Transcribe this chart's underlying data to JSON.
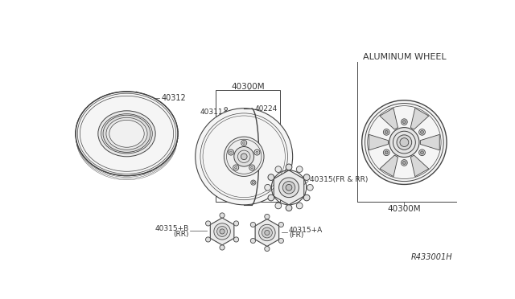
{
  "bg_color": "#ffffff",
  "line_color": "#444444",
  "text_color": "#333333",
  "ref_code": "R433001H",
  "labels": {
    "tire": "40312",
    "wheel_top": "40300M",
    "valve": "40311",
    "valve_ext": "40224",
    "hub_cap_main": "40315(FR & RR)",
    "hub_cap_b": "40315+B\n(RR)",
    "hub_cap_a": "40315+A\n(FR)",
    "aluminum_wheel_title": "ALUMINUM WHEEL",
    "aluminum_wheel_part": "40300M"
  },
  "fig_width": 6.4,
  "fig_height": 3.72,
  "dpi": 100
}
